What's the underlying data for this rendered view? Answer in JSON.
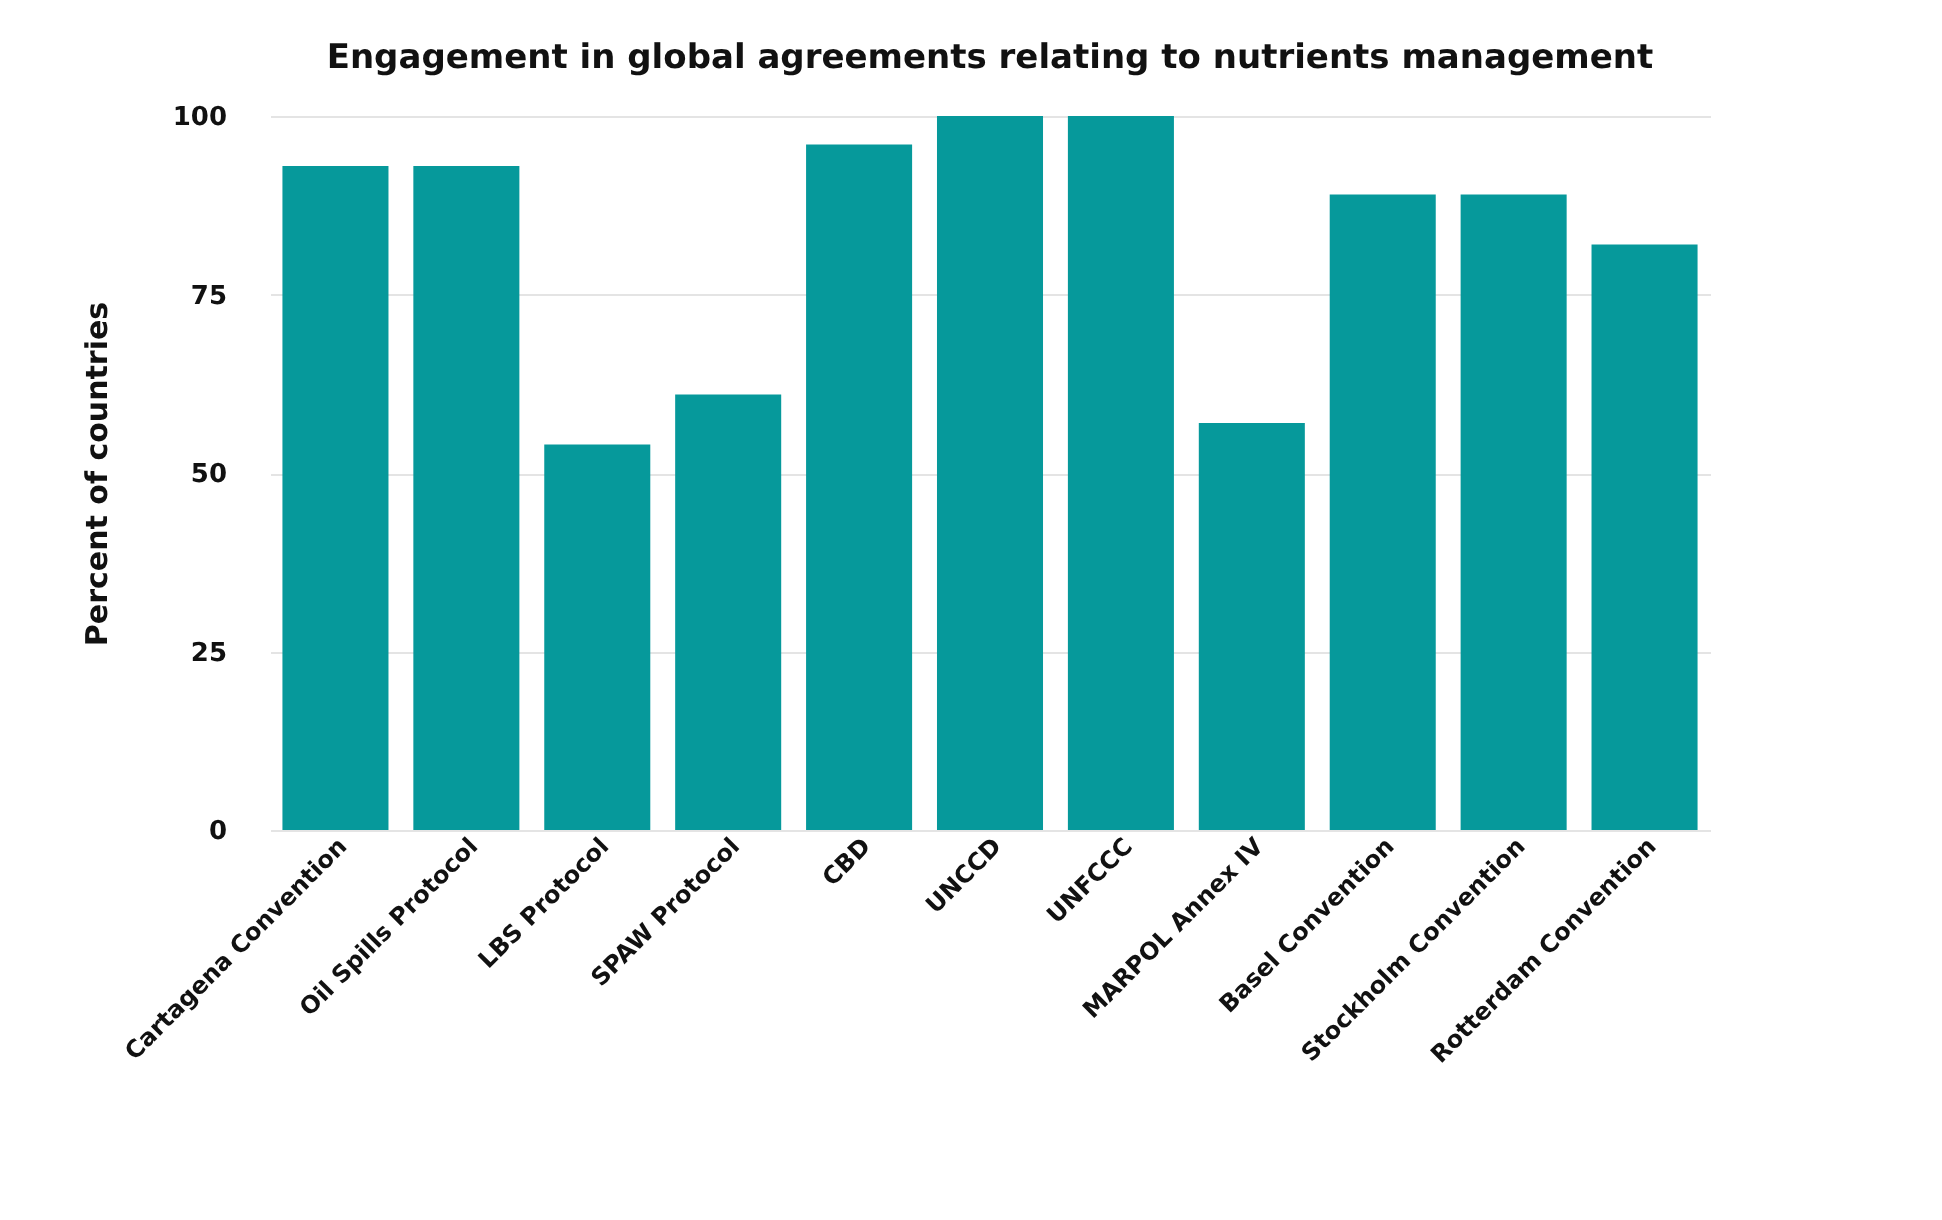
{
  "chart_data": {
    "type": "bar",
    "title": "Engagement in global agreements relating to nutrients management",
    "ylabel": "Percent of countries",
    "categories": [
      "Cartagena Convention",
      "Oil Spills Protocol",
      "LBS Protocol",
      "SPAW Protocol",
      "CBD",
      "UNCCD",
      "UNFCCC",
      "MARPOL Annex IV",
      "Basel Convention",
      "Stockholm Convention",
      "Rotterdam Convention"
    ],
    "values": [
      93,
      93,
      54,
      61,
      96,
      100,
      100,
      57,
      89,
      89,
      82
    ],
    "color": "#06999b",
    "ylim": [
      0,
      100
    ],
    "yticks": [
      0,
      25,
      50,
      75,
      100
    ],
    "grid": "y"
  }
}
